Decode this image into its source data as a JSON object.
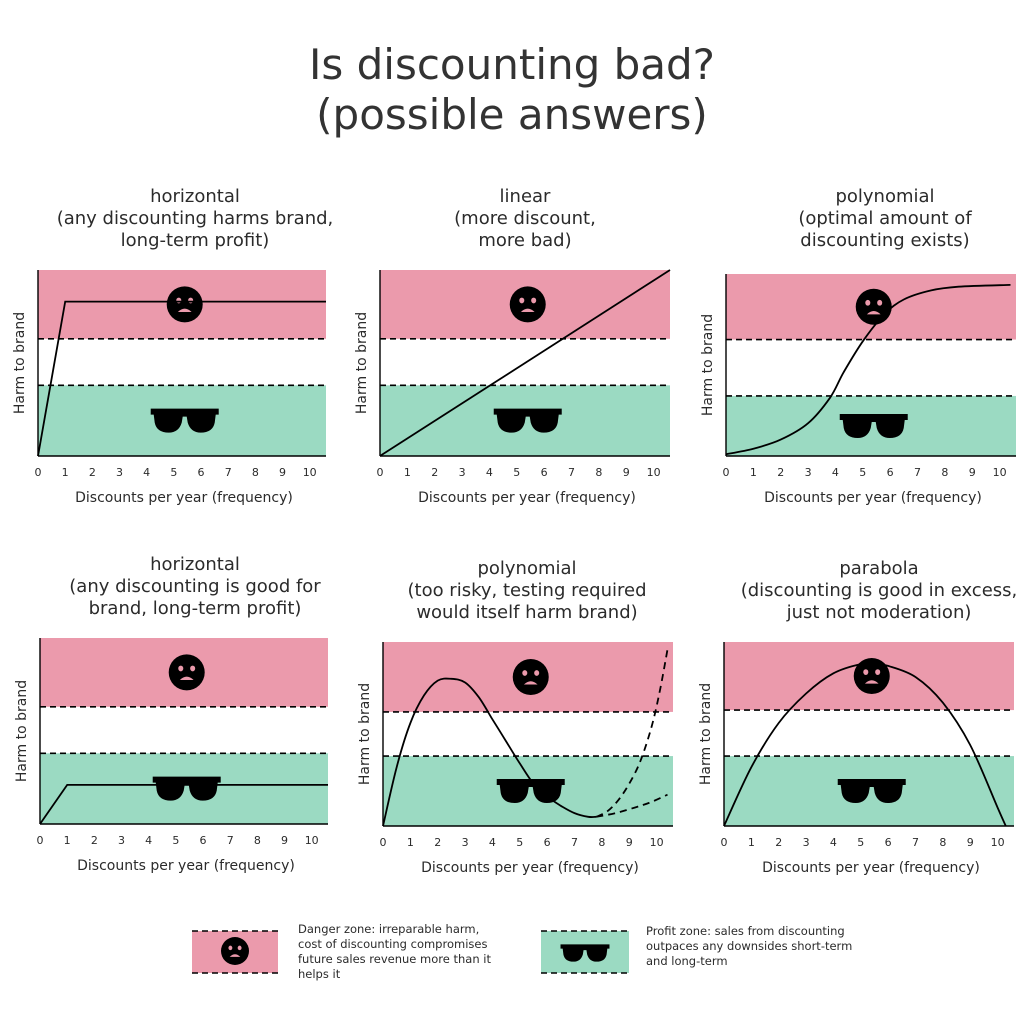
{
  "title": [
    "Is discounting bad?",
    "(possible answers)"
  ],
  "colors": {
    "danger": "#eb9aac",
    "profit": "#9bdac2",
    "line": "#000000",
    "text": "#2b2b2b"
  },
  "legend": {
    "danger_text": [
      "Danger zone: irreparable harm,",
      "cost of discounting compromises",
      "future sales revenue more than it",
      "helps it"
    ],
    "profit_text": [
      "Profit zone: sales from discounting",
      "outpaces any downsides short-term",
      "and long-term"
    ],
    "danger_icon": "sad-face-icon",
    "profit_icon": "sunglasses-icon"
  },
  "chart_data": [
    {
      "type": "line",
      "title": [
        "horizontal",
        "(any discounting harms brand,",
        "long-term profit)"
      ],
      "xlabel": "Discounts per year (frequency)",
      "ylabel": "Harm to brand",
      "xlim": [
        0,
        10.6
      ],
      "ylim": [
        0,
        10
      ],
      "x_ticks": [
        0,
        1,
        2,
        3,
        4,
        5,
        6,
        7,
        8,
        9,
        10
      ],
      "zones": {
        "danger": [
          6.3,
          10
        ],
        "profit": [
          0,
          3.8
        ]
      },
      "icons": {
        "danger_x": 5.4,
        "profit_x": 5.4
      },
      "series": [
        {
          "style": "solid",
          "points": [
            [
              0,
              0
            ],
            [
              1,
              8.3
            ],
            [
              10.6,
              8.3
            ]
          ]
        }
      ]
    },
    {
      "type": "line",
      "title": [
        "linear",
        "(more discount,",
        "more bad)"
      ],
      "xlabel": "Discounts per year (frequency)",
      "ylabel": "Harm to brand",
      "xlim": [
        0,
        10.6
      ],
      "ylim": [
        0,
        10
      ],
      "x_ticks": [
        0,
        1,
        2,
        3,
        4,
        5,
        6,
        7,
        8,
        9,
        10
      ],
      "zones": {
        "danger": [
          6.3,
          10
        ],
        "profit": [
          0,
          3.8
        ]
      },
      "icons": {
        "danger_x": 5.4,
        "profit_x": 5.4
      },
      "series": [
        {
          "style": "solid",
          "points": [
            [
              0,
              0
            ],
            [
              10.6,
              10
            ]
          ]
        }
      ]
    },
    {
      "type": "line",
      "title": [
        "polynomial",
        "(optimal amount of",
        "discounting exists)"
      ],
      "xlabel": "Discounts per year (frequency)",
      "ylabel": "Harm to brand",
      "xlim": [
        0,
        10.6
      ],
      "ylim": [
        0,
        10
      ],
      "x_ticks": [
        0,
        1,
        2,
        3,
        4,
        5,
        6,
        7,
        8,
        9,
        10
      ],
      "zones": {
        "danger": [
          6.4,
          10
        ],
        "profit": [
          0,
          3.3
        ]
      },
      "icons": {
        "danger_x": 5.4,
        "profit_x": 5.4
      },
      "series": [
        {
          "style": "solid",
          "points": [
            [
              0,
              0.1
            ],
            [
              1,
              0.4
            ],
            [
              2,
              0.9
            ],
            [
              3,
              1.8
            ],
            [
              3.8,
              3.2
            ],
            [
              4.3,
              4.6
            ],
            [
              5,
              6.3
            ],
            [
              5.8,
              7.8
            ],
            [
              6.5,
              8.6
            ],
            [
              7.5,
              9.1
            ],
            [
              8.5,
              9.3
            ],
            [
              10.4,
              9.4
            ]
          ]
        }
      ]
    },
    {
      "type": "line",
      "title": [
        "horizontal",
        "(any discounting is good for",
        "brand, long-term profit)"
      ],
      "xlabel": "Discounts per year (frequency)",
      "ylabel": "Harm to brand",
      "xlim": [
        0,
        10.6
      ],
      "ylim": [
        0,
        10
      ],
      "x_ticks": [
        0,
        1,
        2,
        3,
        4,
        5,
        6,
        7,
        8,
        9,
        10
      ],
      "zones": {
        "danger": [
          6.3,
          10
        ],
        "profit": [
          0,
          3.8
        ]
      },
      "icons": {
        "danger_x": 5.4,
        "profit_x": 5.4
      },
      "series": [
        {
          "style": "solid",
          "points": [
            [
              0,
              0
            ],
            [
              1,
              2.1
            ],
            [
              10.6,
              2.1
            ]
          ]
        }
      ]
    },
    {
      "type": "line",
      "title": [
        "polynomial",
        "(too risky, testing required",
        "would itself harm brand)"
      ],
      "xlabel": "Discounts per year (frequency)",
      "ylabel": "Harm to brand",
      "xlim": [
        0,
        10.6
      ],
      "ylim": [
        0,
        10
      ],
      "x_ticks": [
        0,
        1,
        2,
        3,
        4,
        5,
        6,
        7,
        8,
        9,
        10
      ],
      "zones": {
        "danger": [
          6.2,
          10
        ],
        "profit": [
          0,
          3.8
        ]
      },
      "icons": {
        "danger_x": 5.4,
        "profit_x": 5.4
      },
      "series": [
        {
          "style": "solid",
          "points": [
            [
              0,
              0
            ],
            [
              0.5,
              3.2
            ],
            [
              1,
              5.6
            ],
            [
              1.5,
              7.1
            ],
            [
              2,
              7.9
            ],
            [
              2.5,
              8.0
            ],
            [
              3,
              7.8
            ],
            [
              3.5,
              7.0
            ],
            [
              4,
              5.8
            ],
            [
              4.5,
              4.6
            ],
            [
              5,
              3.4
            ],
            [
              5.5,
              2.3
            ],
            [
              6,
              1.6
            ],
            [
              6.5,
              1.1
            ],
            [
              7,
              0.7
            ],
            [
              7.5,
              0.5
            ],
            [
              7.8,
              0.5
            ]
          ]
        },
        {
          "style": "dashed",
          "points": [
            [
              7.8,
              0.5
            ],
            [
              8.2,
              0.8
            ],
            [
              8.6,
              1.4
            ],
            [
              9,
              2.3
            ],
            [
              9.4,
              3.5
            ],
            [
              9.8,
              5.3
            ],
            [
              10.1,
              7.2
            ],
            [
              10.4,
              9.6
            ]
          ]
        },
        {
          "style": "dashed",
          "points": [
            [
              7.8,
              0.5
            ],
            [
              8.5,
              0.7
            ],
            [
              9.2,
              1.0
            ],
            [
              9.8,
              1.3
            ],
            [
              10.4,
              1.7
            ]
          ]
        }
      ]
    },
    {
      "type": "line",
      "title": [
        "parabola",
        "(discounting is good in excess,",
        "just not moderation)"
      ],
      "xlabel": "Discounts per year (frequency)",
      "ylabel": "Harm to brand",
      "xlim": [
        0,
        10.6
      ],
      "ylim": [
        0,
        10
      ],
      "x_ticks": [
        0,
        1,
        2,
        3,
        4,
        5,
        6,
        7,
        8,
        9,
        10
      ],
      "zones": {
        "danger": [
          6.3,
          10
        ],
        "profit": [
          0,
          3.8
        ]
      },
      "icons": {
        "danger_x": 5.4,
        "profit_x": 5.4
      },
      "series": [
        {
          "style": "solid",
          "points": [
            [
              0,
              0
            ],
            [
              1,
              3.2
            ],
            [
              2,
              5.6
            ],
            [
              3,
              7.2
            ],
            [
              4,
              8.3
            ],
            [
              5,
              8.8
            ],
            [
              5.5,
              8.8
            ],
            [
              6,
              8.7
            ],
            [
              7,
              8.1
            ],
            [
              8,
              6.7
            ],
            [
              9,
              4.4
            ],
            [
              10,
              1.0
            ],
            [
              10.3,
              0
            ]
          ]
        }
      ]
    }
  ]
}
